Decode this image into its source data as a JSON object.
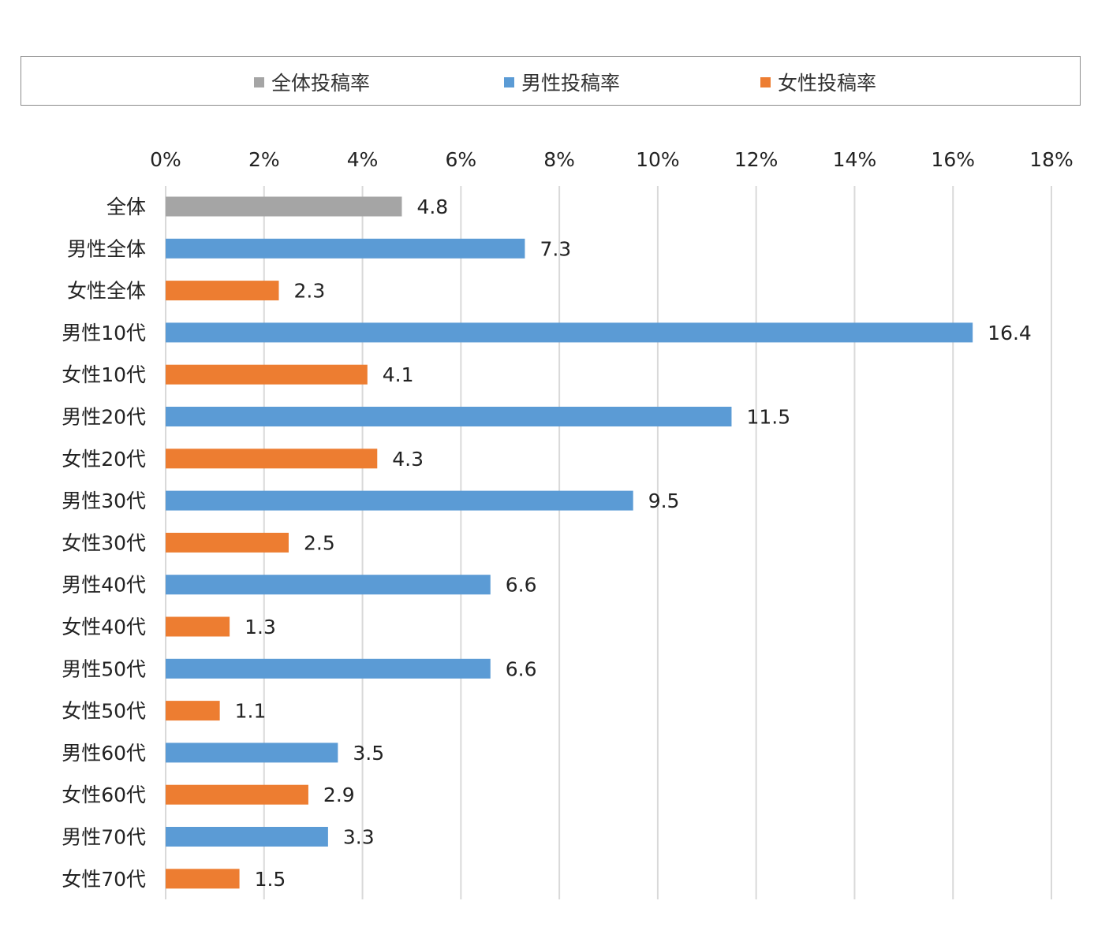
{
  "chart_data": {
    "type": "bar",
    "orientation": "horizontal",
    "title": "",
    "xlabel": "",
    "ylabel": "",
    "xlim": [
      0,
      18
    ],
    "x_ticks": [
      "0%",
      "2%",
      "4%",
      "6%",
      "8%",
      "10%",
      "12%",
      "14%",
      "16%",
      "18%"
    ],
    "x_axis_position": "top",
    "grid": true,
    "legend_position": "top",
    "legend": [
      {
        "name": "全体投稿率",
        "color": "#a5a5a5"
      },
      {
        "name": "男性投稿率",
        "color": "#5b9bd5"
      },
      {
        "name": "女性投稿率",
        "color": "#ed7d31"
      }
    ],
    "categories": [
      "全体",
      "男性全体",
      "女性全体",
      "男性10代",
      "女性10代",
      "男性20代",
      "女性20代",
      "男性30代",
      "女性30代",
      "男性40代",
      "女性40代",
      "男性50代",
      "女性50代",
      "男性60代",
      "女性60代",
      "男性70代",
      "女性70代"
    ],
    "values": [
      4.8,
      7.3,
      2.3,
      16.4,
      4.1,
      11.5,
      4.3,
      9.5,
      2.5,
      6.6,
      1.3,
      6.6,
      1.1,
      3.5,
      2.9,
      3.3,
      1.5
    ],
    "value_labels": [
      "4.8",
      "7.3",
      "2.3",
      "16.4",
      "4.1",
      "11.5",
      "4.3",
      "9.5",
      "2.5",
      "6.6",
      "1.3",
      "6.6",
      "1.1",
      "3.5",
      "2.9",
      "3.3",
      "1.5"
    ],
    "bar_series": [
      0,
      1,
      2,
      1,
      2,
      1,
      2,
      1,
      2,
      1,
      2,
      1,
      2,
      1,
      2,
      1,
      2
    ]
  }
}
